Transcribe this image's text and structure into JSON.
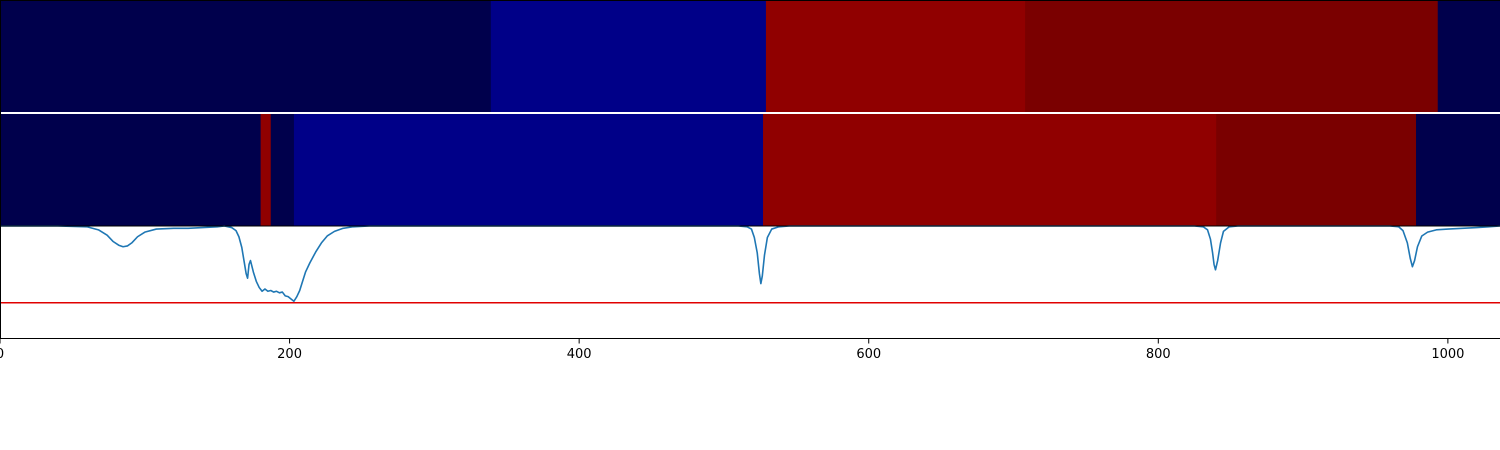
{
  "chart_data": {
    "type": "heatmap",
    "xlim": [
      0,
      1036
    ],
    "ylim_curve": [
      -1.05,
      0
    ],
    "grid": false,
    "x_ticks": [
      {
        "value": 0,
        "label": "0"
      },
      {
        "value": 200,
        "label": "200"
      },
      {
        "value": 400,
        "label": "400"
      },
      {
        "value": 600,
        "label": "600"
      },
      {
        "value": 800,
        "label": "800"
      },
      {
        "value": 1000,
        "label": "1000"
      }
    ],
    "segment_rows": [
      {
        "segments": [
          {
            "start": 0,
            "end": 339,
            "color": "#00004c"
          },
          {
            "start": 339,
            "end": 529,
            "color": "#000088"
          },
          {
            "start": 529,
            "end": 708,
            "color": "#900000"
          },
          {
            "start": 708,
            "end": 993,
            "color": "#7a0000"
          },
          {
            "start": 993,
            "end": 1036,
            "color": "#00004c"
          }
        ]
      },
      {
        "segments": [
          {
            "start": 0,
            "end": 180,
            "color": "#00004c"
          },
          {
            "start": 180,
            "end": 187,
            "color": "#900000"
          },
          {
            "start": 187,
            "end": 203,
            "color": "#00004c"
          },
          {
            "start": 203,
            "end": 527,
            "color": "#000088"
          },
          {
            "start": 527,
            "end": 840,
            "color": "#900000"
          },
          {
            "start": 840,
            "end": 978,
            "color": "#7a0000"
          },
          {
            "start": 978,
            "end": 1036,
            "color": "#00004c"
          }
        ]
      }
    ],
    "curve": {
      "color": "#1f77b4",
      "points": [
        [
          0,
          0
        ],
        [
          40,
          0
        ],
        [
          60,
          -0.01
        ],
        [
          68,
          -0.05
        ],
        [
          74,
          -0.12
        ],
        [
          78,
          -0.2
        ],
        [
          82,
          -0.25
        ],
        [
          85,
          -0.27
        ],
        [
          88,
          -0.26
        ],
        [
          91,
          -0.22
        ],
        [
          95,
          -0.14
        ],
        [
          100,
          -0.08
        ],
        [
          108,
          -0.04
        ],
        [
          120,
          -0.03
        ],
        [
          130,
          -0.03
        ],
        [
          140,
          -0.02
        ],
        [
          150,
          -0.01
        ],
        [
          155,
          0
        ],
        [
          160,
          -0.02
        ],
        [
          163,
          -0.06
        ],
        [
          165,
          -0.14
        ],
        [
          167,
          -0.28
        ],
        [
          168.5,
          -0.45
        ],
        [
          170,
          -0.62
        ],
        [
          171,
          -0.68
        ],
        [
          172,
          -0.5
        ],
        [
          173,
          -0.45
        ],
        [
          175,
          -0.6
        ],
        [
          177,
          -0.72
        ],
        [
          179,
          -0.8
        ],
        [
          181,
          -0.85
        ],
        [
          183,
          -0.82
        ],
        [
          185,
          -0.85
        ],
        [
          187,
          -0.84
        ],
        [
          189,
          -0.86
        ],
        [
          191,
          -0.85
        ],
        [
          193,
          -0.87
        ],
        [
          195,
          -0.86
        ],
        [
          197,
          -0.91
        ],
        [
          199,
          -0.92
        ],
        [
          201,
          -0.95
        ],
        [
          203,
          -0.98
        ],
        [
          205,
          -0.92
        ],
        [
          207,
          -0.84
        ],
        [
          209,
          -0.72
        ],
        [
          211,
          -0.6
        ],
        [
          214,
          -0.48
        ],
        [
          218,
          -0.34
        ],
        [
          222,
          -0.22
        ],
        [
          226,
          -0.13
        ],
        [
          231,
          -0.07
        ],
        [
          237,
          -0.03
        ],
        [
          244,
          -0.01
        ],
        [
          255,
          0
        ],
        [
          510,
          0
        ],
        [
          516,
          -0.01
        ],
        [
          519,
          -0.04
        ],
        [
          521,
          -0.15
        ],
        [
          523,
          -0.35
        ],
        [
          524.5,
          -0.62
        ],
        [
          525.5,
          -0.75
        ],
        [
          526.5,
          -0.65
        ],
        [
          528,
          -0.38
        ],
        [
          530,
          -0.15
        ],
        [
          533,
          -0.04
        ],
        [
          538,
          -0.01
        ],
        [
          545,
          0
        ],
        [
          825,
          0
        ],
        [
          831,
          -0.01
        ],
        [
          834,
          -0.05
        ],
        [
          836,
          -0.17
        ],
        [
          837.5,
          -0.35
        ],
        [
          838.5,
          -0.5
        ],
        [
          839.5,
          -0.57
        ],
        [
          841,
          -0.45
        ],
        [
          843,
          -0.22
        ],
        [
          845,
          -0.07
        ],
        [
          849,
          -0.01
        ],
        [
          855,
          0
        ],
        [
          960,
          0
        ],
        [
          966,
          -0.01
        ],
        [
          969,
          -0.06
        ],
        [
          972,
          -0.22
        ],
        [
          974,
          -0.42
        ],
        [
          975.5,
          -0.53
        ],
        [
          977,
          -0.45
        ],
        [
          979,
          -0.27
        ],
        [
          982,
          -0.13
        ],
        [
          986,
          -0.08
        ],
        [
          992,
          -0.05
        ],
        [
          1000,
          -0.04
        ],
        [
          1010,
          -0.03
        ],
        [
          1020,
          -0.02
        ],
        [
          1028,
          -0.01
        ],
        [
          1036,
          0
        ]
      ]
    },
    "threshold": {
      "value": -1.0,
      "color": "#e00000"
    }
  }
}
